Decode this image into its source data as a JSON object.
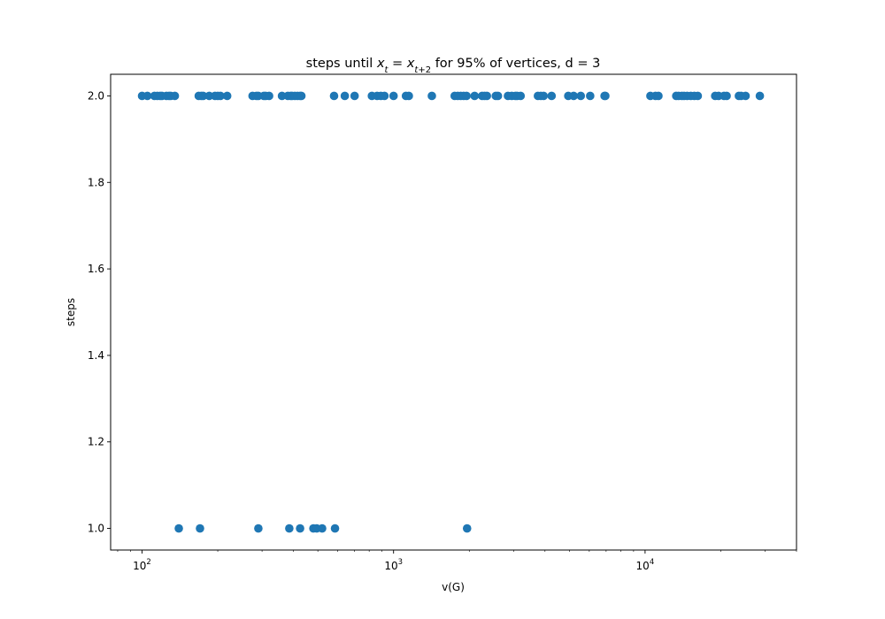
{
  "chart_data": {
    "type": "scatter",
    "title": {
      "prefix": "steps until ",
      "math": [
        {
          "text": "x",
          "italic": true
        },
        {
          "text": "t",
          "italic": true,
          "sub": true
        },
        {
          "text": " = ",
          "italic": false
        },
        {
          "text": "x",
          "italic": true
        },
        {
          "text": "t",
          "italic": true,
          "sub": true
        },
        {
          "text": "+2",
          "italic": false,
          "sub": true
        }
      ],
      "suffix": " for 95% of vertices, d = 3"
    },
    "xlabel": "v(G)",
    "ylabel": "steps",
    "x_scale": "log",
    "xlim": [
      75,
      40000
    ],
    "ylim": [
      0.95,
      2.05
    ],
    "x_ticks": [
      {
        "value": 100,
        "base": "10",
        "exp": "2"
      },
      {
        "value": 1000,
        "base": "10",
        "exp": "3"
      },
      {
        "value": 10000,
        "base": "10",
        "exp": "4"
      }
    ],
    "y_ticks": [
      "1.0",
      "1.2",
      "1.4",
      "1.6",
      "1.8",
      "2.0"
    ],
    "grid": false,
    "marker_color": "#1f77b4",
    "points": [
      {
        "x": 100,
        "y": 2
      },
      {
        "x": 105,
        "y": 2
      },
      {
        "x": 112,
        "y": 2
      },
      {
        "x": 115,
        "y": 2
      },
      {
        "x": 118,
        "y": 2
      },
      {
        "x": 120,
        "y": 2
      },
      {
        "x": 125,
        "y": 2
      },
      {
        "x": 128,
        "y": 2
      },
      {
        "x": 130,
        "y": 2
      },
      {
        "x": 135,
        "y": 2
      },
      {
        "x": 168,
        "y": 2
      },
      {
        "x": 172,
        "y": 2
      },
      {
        "x": 175,
        "y": 2
      },
      {
        "x": 185,
        "y": 2
      },
      {
        "x": 195,
        "y": 2
      },
      {
        "x": 200,
        "y": 2
      },
      {
        "x": 205,
        "y": 2
      },
      {
        "x": 218,
        "y": 2
      },
      {
        "x": 275,
        "y": 2
      },
      {
        "x": 285,
        "y": 2
      },
      {
        "x": 290,
        "y": 2
      },
      {
        "x": 305,
        "y": 2
      },
      {
        "x": 310,
        "y": 2
      },
      {
        "x": 320,
        "y": 2
      },
      {
        "x": 360,
        "y": 2
      },
      {
        "x": 380,
        "y": 2
      },
      {
        "x": 390,
        "y": 2
      },
      {
        "x": 395,
        "y": 2
      },
      {
        "x": 405,
        "y": 2
      },
      {
        "x": 415,
        "y": 2
      },
      {
        "x": 425,
        "y": 2
      },
      {
        "x": 430,
        "y": 2
      },
      {
        "x": 580,
        "y": 2
      },
      {
        "x": 640,
        "y": 2
      },
      {
        "x": 700,
        "y": 2
      },
      {
        "x": 820,
        "y": 2
      },
      {
        "x": 860,
        "y": 2
      },
      {
        "x": 890,
        "y": 2
      },
      {
        "x": 920,
        "y": 2
      },
      {
        "x": 1000,
        "y": 2
      },
      {
        "x": 1120,
        "y": 2
      },
      {
        "x": 1150,
        "y": 2
      },
      {
        "x": 1420,
        "y": 2
      },
      {
        "x": 1750,
        "y": 2
      },
      {
        "x": 1800,
        "y": 2
      },
      {
        "x": 1850,
        "y": 2
      },
      {
        "x": 1900,
        "y": 2
      },
      {
        "x": 1950,
        "y": 2
      },
      {
        "x": 2100,
        "y": 2
      },
      {
        "x": 2250,
        "y": 2
      },
      {
        "x": 2300,
        "y": 2
      },
      {
        "x": 2350,
        "y": 2
      },
      {
        "x": 2550,
        "y": 2
      },
      {
        "x": 2600,
        "y": 2
      },
      {
        "x": 2850,
        "y": 2
      },
      {
        "x": 2950,
        "y": 2
      },
      {
        "x": 3050,
        "y": 2
      },
      {
        "x": 3100,
        "y": 2
      },
      {
        "x": 3200,
        "y": 2
      },
      {
        "x": 3750,
        "y": 2
      },
      {
        "x": 3850,
        "y": 2
      },
      {
        "x": 3950,
        "y": 2
      },
      {
        "x": 4250,
        "y": 2
      },
      {
        "x": 4950,
        "y": 2
      },
      {
        "x": 5200,
        "y": 2
      },
      {
        "x": 5550,
        "y": 2
      },
      {
        "x": 6050,
        "y": 2
      },
      {
        "x": 6900,
        "y": 2
      },
      {
        "x": 6950,
        "y": 2
      },
      {
        "x": 10500,
        "y": 2
      },
      {
        "x": 11000,
        "y": 2
      },
      {
        "x": 11300,
        "y": 2
      },
      {
        "x": 13300,
        "y": 2
      },
      {
        "x": 13600,
        "y": 2
      },
      {
        "x": 14000,
        "y": 2
      },
      {
        "x": 14300,
        "y": 2
      },
      {
        "x": 14700,
        "y": 2
      },
      {
        "x": 15200,
        "y": 2
      },
      {
        "x": 15700,
        "y": 2
      },
      {
        "x": 16200,
        "y": 2
      },
      {
        "x": 19000,
        "y": 2
      },
      {
        "x": 19600,
        "y": 2
      },
      {
        "x": 20600,
        "y": 2
      },
      {
        "x": 21100,
        "y": 2
      },
      {
        "x": 23600,
        "y": 2
      },
      {
        "x": 24100,
        "y": 2
      },
      {
        "x": 25100,
        "y": 2
      },
      {
        "x": 28600,
        "y": 2
      },
      {
        "x": 140,
        "y": 1
      },
      {
        "x": 170,
        "y": 1
      },
      {
        "x": 290,
        "y": 1
      },
      {
        "x": 385,
        "y": 1
      },
      {
        "x": 425,
        "y": 1
      },
      {
        "x": 480,
        "y": 1
      },
      {
        "x": 495,
        "y": 1
      },
      {
        "x": 520,
        "y": 1
      },
      {
        "x": 585,
        "y": 1
      },
      {
        "x": 1960,
        "y": 1
      }
    ]
  }
}
